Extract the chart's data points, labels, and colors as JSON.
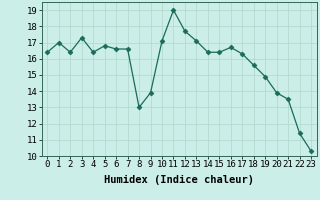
{
  "x": [
    0,
    1,
    2,
    3,
    4,
    5,
    6,
    7,
    8,
    9,
    10,
    11,
    12,
    13,
    14,
    15,
    16,
    17,
    18,
    19,
    20,
    21,
    22,
    23
  ],
  "y": [
    16.4,
    17.0,
    16.4,
    17.3,
    16.4,
    16.8,
    16.6,
    16.6,
    13.0,
    13.9,
    17.1,
    19.0,
    17.7,
    17.1,
    16.4,
    16.4,
    16.7,
    16.3,
    15.6,
    14.9,
    13.9,
    13.5,
    11.4,
    10.3
  ],
  "line_color": "#1a6b5a",
  "marker": "D",
  "marker_size": 2.5,
  "bg_color": "#cceee8",
  "grid_color": "#b0d8cc",
  "xlabel": "Humidex (Indice chaleur)",
  "xlim": [
    -0.5,
    23.5
  ],
  "ylim": [
    10,
    19.5
  ],
  "yticks": [
    10,
    11,
    12,
    13,
    14,
    15,
    16,
    17,
    18,
    19
  ],
  "xticks": [
    0,
    1,
    2,
    3,
    4,
    5,
    6,
    7,
    8,
    9,
    10,
    11,
    12,
    13,
    14,
    15,
    16,
    17,
    18,
    19,
    20,
    21,
    22,
    23
  ],
  "xlabel_fontsize": 7.5,
  "tick_fontsize": 6.5
}
